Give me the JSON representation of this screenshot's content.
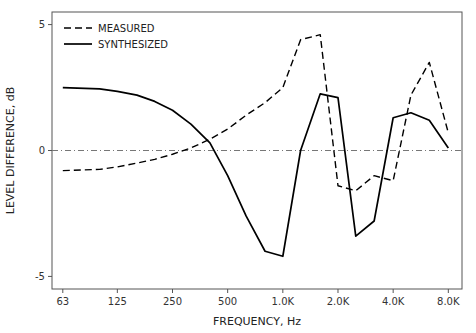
{
  "chart_data": {
    "type": "line",
    "xlabel": "FREQUENCY, Hz",
    "ylabel": "LEVEL DIFFERENCE, dB",
    "log": "x",
    "grid": false,
    "legend": "upper left",
    "xlim": [
      55,
      9500
    ],
    "ylim": [
      -5.5,
      5.5
    ],
    "yticks": [
      -5,
      0,
      5
    ],
    "xticks": [
      63,
      125,
      250,
      500,
      {
        "value": 1000,
        "label": "1.0K"
      },
      {
        "value": 2000,
        "label": "2.0K"
      },
      {
        "value": 4000,
        "label": "4.0K"
      },
      {
        "value": 8000,
        "label": "8.0K"
      }
    ],
    "hlines": [
      0
    ],
    "x": [
      63,
      100,
      125,
      160,
      200,
      250,
      315,
      400,
      500,
      630,
      800,
      1000,
      1250,
      1600,
      2000,
      2500,
      3150,
      4000,
      5000,
      6300,
      8000
    ],
    "series": [
      {
        "name": "MEASURED",
        "color": "#000000",
        "line_style": "dashed",
        "values": [
          -0.8,
          -0.75,
          -0.65,
          -0.5,
          -0.35,
          -0.15,
          0.1,
          0.45,
          0.85,
          1.4,
          1.9,
          2.5,
          4.4,
          4.6,
          -1.4,
          -1.6,
          -1.0,
          -1.2,
          2.2,
          3.5,
          0.7
        ]
      },
      {
        "name": "SYNTHESIZED",
        "color": "#000000",
        "line_style": "solid",
        "values": [
          2.5,
          2.45,
          2.35,
          2.2,
          1.95,
          1.6,
          1.05,
          0.3,
          -1.0,
          -2.6,
          -4.0,
          -4.2,
          0.0,
          2.25,
          2.1,
          -3.4,
          -2.8,
          1.3,
          1.5,
          1.2,
          0.1
        ]
      }
    ]
  }
}
